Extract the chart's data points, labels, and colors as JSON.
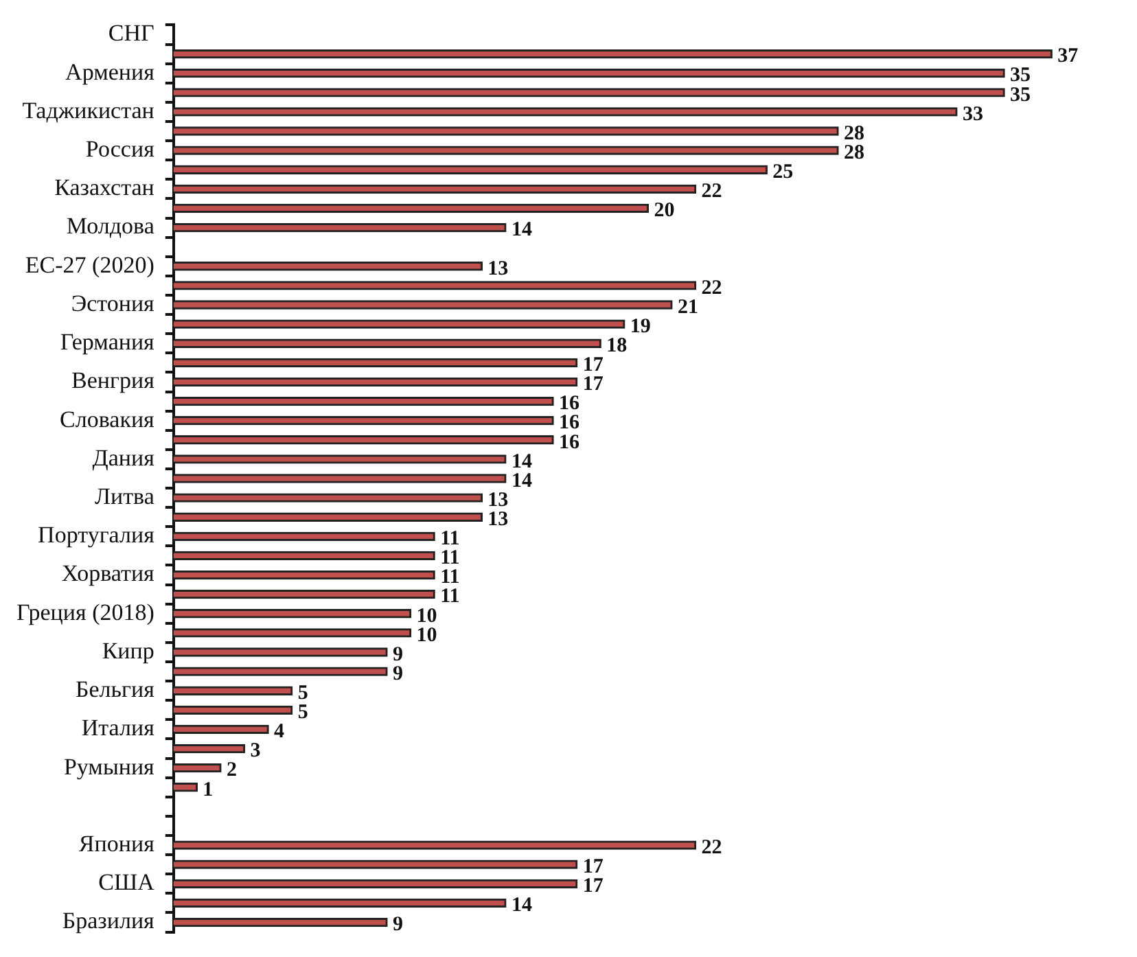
{
  "chart_data": {
    "type": "bar",
    "orientation": "horizontal",
    "categories": [
      "СНГ",
      null,
      "Армения",
      null,
      "Таджикистан",
      null,
      "Россия",
      null,
      "Казахстан",
      null,
      "Молдова",
      null,
      "ЕС-27 (2020)",
      null,
      "Эстония",
      null,
      "Германия",
      null,
      "Венгрия",
      null,
      "Словакия",
      null,
      "Дания",
      null,
      "Литва",
      null,
      "Португалия",
      null,
      "Хорватия",
      null,
      "Греция (2018)",
      null,
      "Кипр",
      null,
      "Бельгия",
      null,
      "Италия",
      null,
      "Румыния",
      null,
      null,
      null,
      "Япония",
      null,
      "США",
      null,
      "Бразилия"
    ],
    "values": [
      null,
      37,
      35,
      35,
      33,
      28,
      28,
      25,
      22,
      20,
      14,
      null,
      13,
      22,
      21,
      19,
      18,
      17,
      17,
      16,
      16,
      16,
      14,
      14,
      13,
      13,
      11,
      11,
      11,
      11,
      10,
      10,
      9,
      9,
      5,
      5,
      4,
      3,
      2,
      1,
      null,
      null,
      22,
      17,
      17,
      14,
      9
    ],
    "colors": [
      "#c0504d",
      "#c0504d",
      "#c0504d",
      "#c0504d",
      "#c0504d",
      "#c0504d",
      "#c0504d",
      "#c0504d",
      "#c0504d",
      "#c0504d",
      "#c0504d",
      "#c0504d",
      "#c0504d",
      "#c0504d",
      "#c0504d",
      "#c0504d",
      "#c0504d",
      "#c0504d",
      "#c0504d",
      "#c0504d",
      "#c0504d",
      "#c0504d",
      "#c0504d",
      "#c0504d",
      "#c0504d",
      "#c0504d",
      "#c0504d",
      "#c0504d",
      "#c0504d",
      "#c0504d",
      "#c0504d",
      "#c0504d",
      "#c0504d",
      "#c0504d",
      "#c0504d",
      "#c0504d",
      "#c0504d",
      "#c0504d",
      "#c0504d",
      "#c0504d",
      "#c0504d",
      "#c0504d",
      "#c0504d",
      "#c0504d",
      "#c0504d",
      "#c0504d",
      "#c0504d"
    ],
    "tick_labels": "y",
    "data_labels": true,
    "grid": false,
    "legend": false
  }
}
